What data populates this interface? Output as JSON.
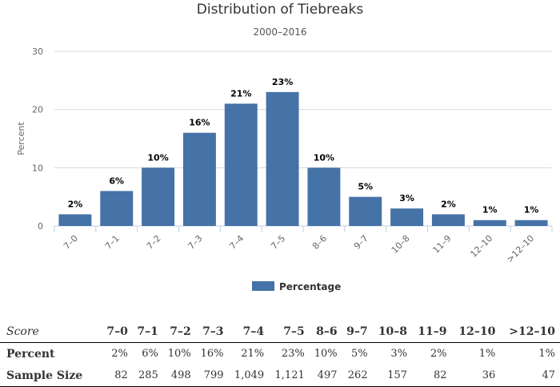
{
  "chart_data": {
    "type": "bar",
    "title": "Distribution of Tiebreaks",
    "subtitle": "2000–2016",
    "ylabel": "Percent",
    "xlabel": "",
    "ylim": [
      0,
      30
    ],
    "yticks": [
      0,
      10,
      20,
      30
    ],
    "categories": [
      "7–0",
      "7–1",
      "7–2",
      "7–3",
      "7–4",
      "7–5",
      "8–6",
      "9–7",
      "10–8",
      "11–9",
      "12–10",
      ">12–10"
    ],
    "series": [
      {
        "name": "Percentage",
        "values": [
          2,
          6,
          10,
          16,
          21,
          23,
          10,
          5,
          3,
          2,
          1,
          1
        ],
        "data_labels": [
          "2%",
          "6%",
          "10%",
          "16%",
          "21%",
          "23%",
          "10%",
          "5%",
          "3%",
          "2%",
          "1%",
          "1%"
        ]
      }
    ],
    "grid": true,
    "legend_position": "bottom",
    "bar_color": "#4572a7"
  },
  "table": {
    "header_label": "Score",
    "columns": [
      "7–0",
      "7–1",
      "7–2",
      "7–3",
      "7–4",
      "7–5",
      "8–6",
      "9–7",
      "10–8",
      "11–9",
      "12–10",
      ">12–10"
    ],
    "rows": [
      {
        "label": "Percent",
        "cells": [
          "2%",
          "6%",
          "10%",
          "16%",
          "21%",
          "23%",
          "10%",
          "5%",
          "3%",
          "2%",
          "1%",
          "1%"
        ]
      },
      {
        "label": "Sample Size",
        "cells": [
          "82",
          "285",
          "498",
          "799",
          "1,049",
          "1,121",
          "497",
          "262",
          "157",
          "82",
          "36",
          "47"
        ]
      }
    ]
  }
}
